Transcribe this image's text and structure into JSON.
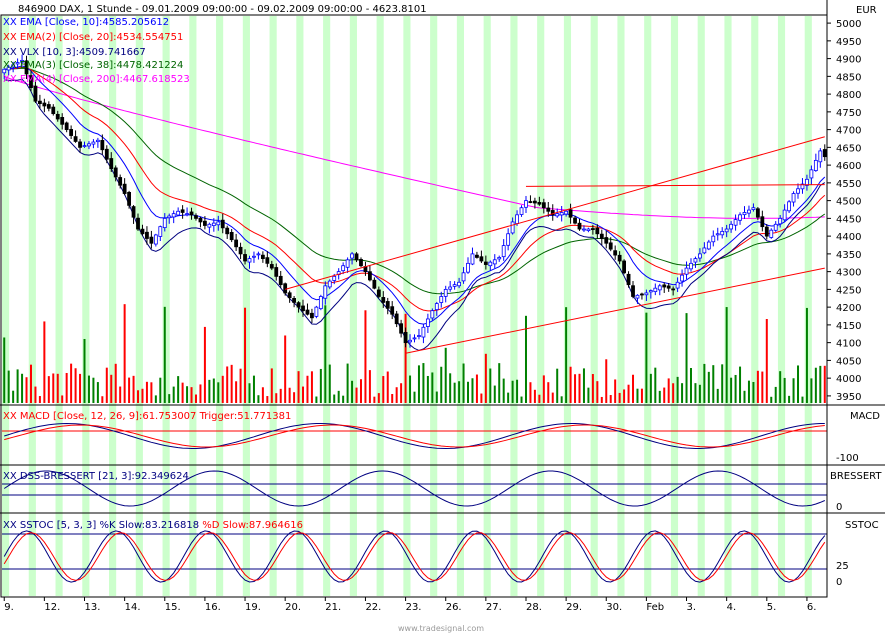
{
  "header": {
    "symbol_line": "846900  DAX, 1 Stunde - 09.01.2009 09:00:00 - 09.02.2009 09:00:00 - 4623.8101",
    "currency": "EUR"
  },
  "legend": [
    {
      "prefix": "XX ",
      "text": "EMA [Close, 10]:4585.205612",
      "color": "#0000ff"
    },
    {
      "prefix": "XX ",
      "text": "EMA(2) [Close, 20]:4534.554751",
      "color": "#ff0000"
    },
    {
      "prefix": "XX ",
      "text": "VLX [10, 3]:4509.741667",
      "color": "#000080"
    },
    {
      "prefix": "XX ",
      "text": "EMA(3) [Close, 38]:4478.421224",
      "color": "#006400"
    },
    {
      "prefix": "XX ",
      "text": "EMA(4) [Close, 200]:4467.618523",
      "color": "#ff00ff"
    }
  ],
  "panels": {
    "macd": {
      "label": "XX MACD [Close, 12, 26, 9]:61.753007 Trigger:51.771381",
      "axis_title": "MACD",
      "ticks": [
        "-100"
      ]
    },
    "dss": {
      "label": "XX DSS-BRESSERT [21, 3]:92.349624",
      "axis_title": "BRESSERT",
      "ticks": [
        "0"
      ]
    },
    "sstoc": {
      "label_parts": [
        "XX SSTOC [5, 3, 3] %K Slow:83.216818 ",
        "%D Slow:87.964616"
      ],
      "axis_title": "SSTOC",
      "ticks": [
        "25",
        "0"
      ]
    }
  },
  "footer": {
    "watermark": "www.tradesignal.com"
  },
  "colors": {
    "candle_up": "#0000ff",
    "candle_down": "#000000",
    "volume_up": "#008000",
    "volume_down": "#ff0000",
    "session_shade": "#ccffcc",
    "ema10": "#0000ff",
    "ema20": "#ff0000",
    "vlx": "#000080",
    "ema38": "#006400",
    "ema200": "#ff00ff",
    "trendline": "#ff0000"
  },
  "chart_data": {
    "type": "candlestick",
    "title": "846900  DAX, 1 Stunde - 09.01.2009 09:00:00 - 09.02.2009 09:00:00 - 4623.8101",
    "x_ticks": [
      "9.",
      "12.",
      "13.",
      "14.",
      "15.",
      "16.",
      "19.",
      "20.",
      "21.",
      "22.",
      "23.",
      "26.",
      "27.",
      "28.",
      "29.",
      "30.",
      "Feb",
      "3.",
      "4.",
      "5.",
      "6."
    ],
    "y_ticks": [
      "5000",
      "4950",
      "4900",
      "4850",
      "4800",
      "4750",
      "4700",
      "4650",
      "4600",
      "4550",
      "4500",
      "4450",
      "4400",
      "4350",
      "4300",
      "4250",
      "4200",
      "4150",
      "4100",
      "4050",
      "4000",
      "3950"
    ],
    "ylim": [
      3930,
      5020
    ],
    "close_keypoints": [
      [
        0,
        4870
      ],
      [
        4,
        4895
      ],
      [
        7,
        4780
      ],
      [
        10,
        4760
      ],
      [
        14,
        4700
      ],
      [
        17,
        4650
      ],
      [
        21,
        4670
      ],
      [
        24,
        4590
      ],
      [
        27,
        4520
      ],
      [
        30,
        4420
      ],
      [
        33,
        4380
      ],
      [
        36,
        4450
      ],
      [
        39,
        4470
      ],
      [
        42,
        4460
      ],
      [
        45,
        4430
      ],
      [
        48,
        4440
      ],
      [
        51,
        4390
      ],
      [
        54,
        4330
      ],
      [
        57,
        4350
      ],
      [
        60,
        4310
      ],
      [
        63,
        4240
      ],
      [
        66,
        4200
      ],
      [
        69,
        4170
      ],
      [
        72,
        4260
      ],
      [
        75,
        4300
      ],
      [
        78,
        4350
      ],
      [
        81,
        4300
      ],
      [
        84,
        4230
      ],
      [
        87,
        4180
      ],
      [
        90,
        4100
      ],
      [
        93,
        4120
      ],
      [
        96,
        4190
      ],
      [
        99,
        4250
      ],
      [
        102,
        4270
      ],
      [
        105,
        4350
      ],
      [
        108,
        4320
      ],
      [
        111,
        4340
      ],
      [
        114,
        4440
      ],
      [
        117,
        4500
      ],
      [
        120,
        4490
      ],
      [
        123,
        4460
      ],
      [
        126,
        4470
      ],
      [
        129,
        4420
      ],
      [
        132,
        4420
      ],
      [
        135,
        4380
      ],
      [
        138,
        4330
      ],
      [
        141,
        4230
      ],
      [
        144,
        4240
      ],
      [
        147,
        4260
      ],
      [
        150,
        4250
      ],
      [
        153,
        4310
      ],
      [
        156,
        4350
      ],
      [
        159,
        4400
      ],
      [
        162,
        4420
      ],
      [
        165,
        4460
      ],
      [
        168,
        4480
      ],
      [
        171,
        4400
      ],
      [
        174,
        4450
      ],
      [
        177,
        4520
      ],
      [
        180,
        4560
      ],
      [
        183,
        4640
      ],
      [
        184,
        4623.81
      ]
    ],
    "last_values": {
      "ema10": 4585.205612,
      "ema20": 4534.554751,
      "vlx": 4509.741667,
      "ema38": 4478.421224,
      "ema200": 4467.618523,
      "macd": 61.753007,
      "macd_trigger": 51.771381,
      "dss": 92.349624,
      "k_slow": 83.216818,
      "d_slow": 87.964616
    },
    "grid": false,
    "legend": "top-left"
  }
}
